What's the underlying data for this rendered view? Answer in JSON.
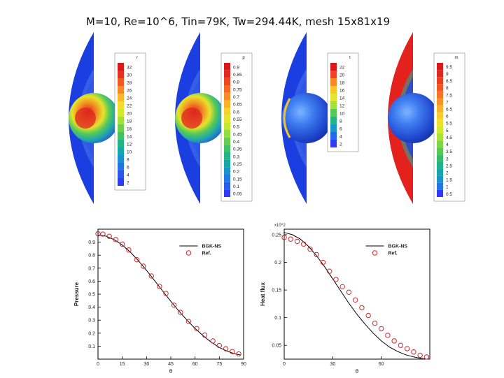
{
  "title": "M=10, Re=10^6, Tin=79K, Tw=294.44K, mesh 15x81x19",
  "contour_panels": [
    {
      "variable": "r",
      "levels": [
        "32",
        "30",
        "28",
        "26",
        "24",
        "22",
        "20",
        "18",
        "16",
        "14",
        "12",
        "10",
        "8",
        "6",
        "4",
        "2"
      ],
      "colors": [
        "#d7191c",
        "#e8301f",
        "#f05a22",
        "#f78a26",
        "#fbb82a",
        "#f6dc2c",
        "#d4ea2e",
        "#a2e03a",
        "#6fd04c",
        "#43c262",
        "#1fb586",
        "#12a8ad",
        "#1b8fd3",
        "#2374e6",
        "#2a56ee",
        "#2f3cf3"
      ]
    },
    {
      "variable": "p",
      "levels": [
        "0.9",
        "0.85",
        "0.8",
        "0.75",
        "0.7",
        "0.65",
        "0.6",
        "0.55",
        "0.5",
        "0.45",
        "0.4",
        "0.35",
        "0.3",
        "0.25",
        "0.2",
        "0.15",
        "0.1",
        "0.05"
      ],
      "colors": [
        "#d7191c",
        "#e4291e",
        "#ee4620",
        "#f56723",
        "#f98b26",
        "#fbb02a",
        "#f7d02c",
        "#e6e52d",
        "#c1e932",
        "#94dd3e",
        "#67cc50",
        "#41c064",
        "#22b483",
        "#14a7a6",
        "#1a92cb",
        "#217be2",
        "#285eeb",
        "#2f3cf3"
      ]
    },
    {
      "variable": "t",
      "levels": [
        "22",
        "20",
        "18",
        "16",
        "14",
        "12",
        "10",
        "8",
        "6",
        "4",
        "2"
      ],
      "colors": [
        "#d7191c",
        "#f0431f",
        "#f98726",
        "#fbc42b",
        "#e3e42d",
        "#a2e03a",
        "#55c956",
        "#1fb586",
        "#1a95cd",
        "#2568ea",
        "#2f3cf3"
      ]
    },
    {
      "variable": "m",
      "levels": [
        "9.5",
        "9",
        "8.5",
        "8",
        "7.5",
        "7",
        "6.5",
        "6",
        "5.5",
        "5",
        "4.5",
        "4",
        "3.5",
        "3",
        "2.5",
        "2",
        "1.5",
        "1",
        "0.5"
      ],
      "colors": [
        "#d7191c",
        "#e2261e",
        "#eb3c1f",
        "#f25721",
        "#f67424",
        "#f99327",
        "#fbb22a",
        "#f8cd2c",
        "#ece12d",
        "#cfe930",
        "#a7e238",
        "#7ed545",
        "#57c855",
        "#35bd6b",
        "#1db38a",
        "#15a6a9",
        "#1a92cb",
        "#2375e4",
        "#2f3cf3"
      ]
    }
  ],
  "chart_data": [
    {
      "type": "line",
      "title": "",
      "xlabel": "θ",
      "ylabel": "Pressure",
      "xlim": [
        0,
        90
      ],
      "ylim": [
        0,
        1
      ],
      "x_ticks": [
        "0",
        "15",
        "30",
        "45",
        "60",
        "75",
        "90"
      ],
      "y_ticks": [
        "0.1",
        "0.2",
        "0.3",
        "0.4",
        "0.5",
        "0.6",
        "0.7",
        "0.8",
        "0.9"
      ],
      "legend": [
        "BGK-NS",
        "Ref."
      ],
      "series": [
        {
          "name": "BGK-NS",
          "style": "line",
          "x": [
            0,
            5,
            10,
            15,
            20,
            25,
            30,
            35,
            40,
            45,
            50,
            55,
            60,
            65,
            70,
            75,
            80,
            85,
            88
          ],
          "y": [
            0.955,
            0.946,
            0.92,
            0.878,
            0.823,
            0.757,
            0.683,
            0.604,
            0.524,
            0.445,
            0.37,
            0.3,
            0.236,
            0.18,
            0.13,
            0.09,
            0.06,
            0.04,
            0.032
          ]
        },
        {
          "name": "Ref.",
          "style": "marker",
          "x": [
            0,
            3,
            7,
            11,
            15,
            19,
            24,
            28,
            33,
            38,
            42,
            47,
            51,
            56,
            61,
            66,
            71,
            75,
            79,
            83,
            87
          ],
          "y": [
            0.965,
            0.962,
            0.945,
            0.92,
            0.885,
            0.84,
            0.765,
            0.715,
            0.64,
            0.56,
            0.505,
            0.415,
            0.36,
            0.29,
            0.235,
            0.185,
            0.14,
            0.105,
            0.08,
            0.058,
            0.04
          ]
        }
      ]
    },
    {
      "type": "line",
      "title": "",
      "xlabel": "θ",
      "ylabel": "Heat flux",
      "axis_multiplier": "x10^2",
      "xlim": [
        0,
        90
      ],
      "ylim": [
        0.025,
        0.26
      ],
      "x_ticks": [
        "0",
        "30",
        "60"
      ],
      "y_ticks": [
        "0.05",
        "0.1",
        "0.15",
        "0.2",
        "0.25"
      ],
      "legend": [
        "BGK-NS",
        "Ref."
      ],
      "series": [
        {
          "name": "BGK-NS",
          "style": "line",
          "x": [
            0,
            5,
            10,
            15,
            20,
            25,
            30,
            35,
            40,
            45,
            50,
            55,
            60,
            65,
            70,
            75,
            80,
            85,
            88
          ],
          "y": [
            0.254,
            0.25,
            0.242,
            0.229,
            0.212,
            0.192,
            0.17,
            0.148,
            0.126,
            0.106,
            0.088,
            0.072,
            0.058,
            0.047,
            0.039,
            0.033,
            0.029,
            0.026,
            0.025
          ]
        },
        {
          "name": "Ref.",
          "style": "marker",
          "x": [
            0,
            4,
            8,
            12,
            16,
            20,
            24,
            28,
            32,
            36,
            40,
            44,
            48,
            52,
            56,
            60,
            64,
            68,
            72,
            76,
            80,
            84,
            88
          ],
          "y": [
            0.245,
            0.242,
            0.238,
            0.233,
            0.224,
            0.214,
            0.2,
            0.184,
            0.169,
            0.156,
            0.146,
            0.132,
            0.118,
            0.104,
            0.09,
            0.08,
            0.068,
            0.058,
            0.05,
            0.044,
            0.038,
            0.032,
            0.029
          ]
        }
      ]
    }
  ]
}
